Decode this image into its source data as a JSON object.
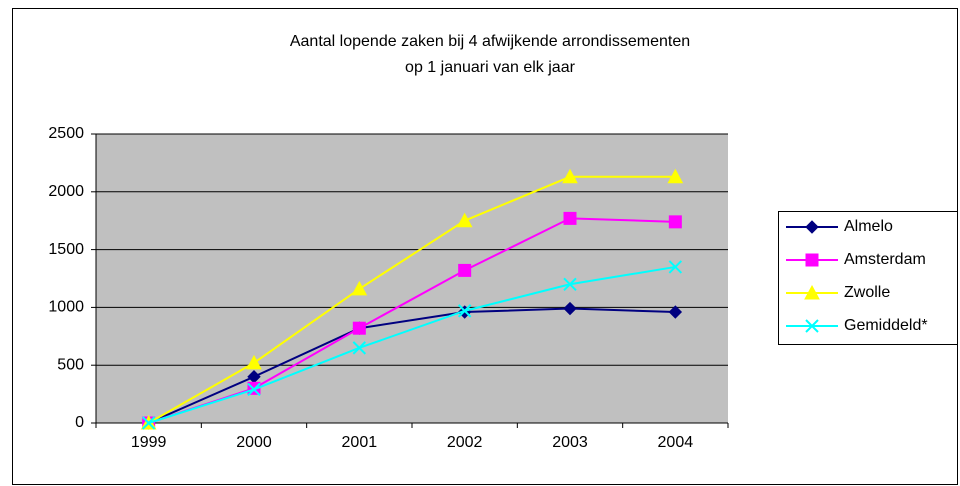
{
  "chart_data": {
    "type": "line",
    "title": [
      "Aantal lopende zaken bij 4 afwijkende arrondissementen",
      "op 1 januari van elk jaar"
    ],
    "categories": [
      "1999",
      "2000",
      "2001",
      "2002",
      "2003",
      "2004"
    ],
    "series": [
      {
        "name": "Almelo",
        "color": "#000080",
        "marker": "diamond",
        "values": [
          0,
          400,
          820,
          960,
          990,
          960
        ]
      },
      {
        "name": "Amsterdam",
        "color": "#ff00ff",
        "marker": "square",
        "values": [
          0,
          300,
          820,
          1320,
          1770,
          1740
        ]
      },
      {
        "name": "Zwolle",
        "color": "#ffff00",
        "marker": "triangle",
        "values": [
          0,
          520,
          1160,
          1750,
          2130,
          2130
        ]
      },
      {
        "name": "Gemiddeld*",
        "color": "#00ffff",
        "marker": "x",
        "values": [
          0,
          290,
          650,
          970,
          1200,
          1350
        ]
      }
    ],
    "ylim": [
      0,
      2500
    ],
    "yticks": [
      0,
      500,
      1000,
      1500,
      2000,
      2500
    ],
    "grid": true,
    "plot_background": "#c0c0c0",
    "legend": "right"
  }
}
